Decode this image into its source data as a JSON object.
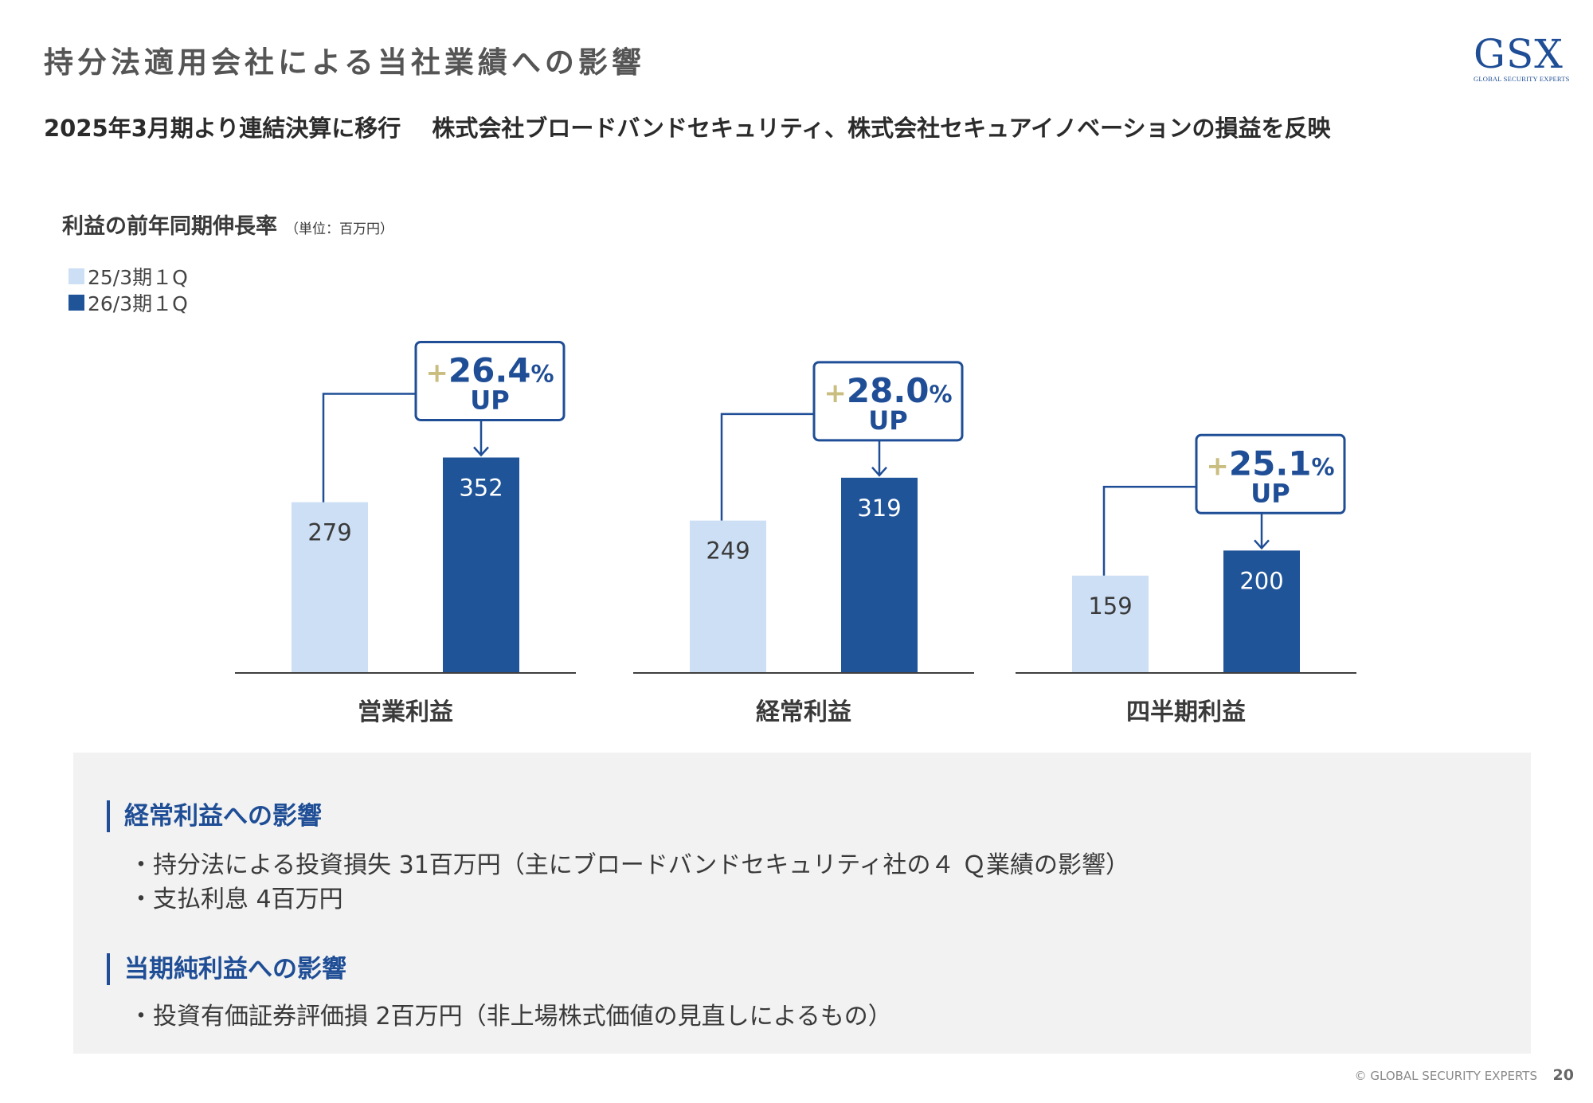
{
  "header": {
    "title": "持分法適用会社による当社業績への影響",
    "subtitle": "2025年3月期より連結決算に移行　 株式会社ブロードバンドセキュリティ、株式会社セキュアイノベーションの損益を反映"
  },
  "logo": {
    "mark": "GSX",
    "tagline": "GLOBAL SECURITY EXPERTS"
  },
  "chart_data": {
    "type": "bar",
    "title": "利益の前年同期伸長率",
    "unit": "（単位：百万円）",
    "categories": [
      "営業利益",
      "経常利益",
      "四半期利益"
    ],
    "series": [
      {
        "name": "25/3期１Q",
        "values": [
          279,
          249,
          159
        ],
        "color": "#cddff5"
      },
      {
        "name": "26/3期１Q",
        "values": [
          352,
          319,
          200
        ],
        "color": "#1f5499"
      }
    ],
    "annotations": [
      {
        "plus": "+",
        "value": "26.4",
        "unit": "%",
        "label": "UP"
      },
      {
        "plus": "+",
        "value": "28.0",
        "unit": "%",
        "label": "UP"
      },
      {
        "plus": "+",
        "value": "25.1",
        "unit": "%",
        "label": "UP"
      }
    ],
    "ylim": [
      0,
      400
    ],
    "legend_position": "top-left",
    "grid": false
  },
  "colors": {
    "accent": "#1f4e96",
    "bar_prior": "#cddff5",
    "bar_current": "#1f5499",
    "plus_sign": "#c9bd7f",
    "panel_bg": "#f2f2f2"
  },
  "info": {
    "sections": [
      {
        "heading": "経常利益への影響",
        "items": [
          "持分法による投資損失 31百万円（主にブロードバンドセキュリティ社の４ Ｑ業績の影響）",
          "支払利息 4百万円"
        ]
      },
      {
        "heading": "当期純利益への影響",
        "items": [
          "投資有価証券評価損 2百万円（非上場株式価値の見直しによるもの）"
        ]
      }
    ]
  },
  "footer": {
    "copyright": "© GLOBAL SECURITY EXPERTS",
    "page_number": "20"
  }
}
